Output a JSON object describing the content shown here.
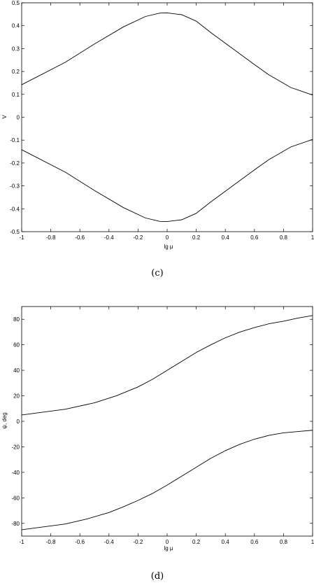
{
  "chart_data": [
    {
      "type": "line",
      "caption": "(c)",
      "xlabel": "lg μ",
      "ylabel": "V",
      "xlim": [
        -1,
        1
      ],
      "ylim": [
        -0.5,
        0.5
      ],
      "xticks": [
        -1,
        -0.8,
        -0.6,
        -0.4,
        -0.2,
        0,
        0.2,
        0.4,
        0.6,
        0.8,
        1
      ],
      "xtick_labels": [
        "-1",
        "-0.8",
        "-0.6",
        "-0.4",
        "-0.2",
        "0",
        "0.2",
        "0.4",
        "0.6",
        "0.8",
        "1"
      ],
      "yticks": [
        -0.5,
        -0.4,
        -0.3,
        -0.2,
        -0.1,
        0,
        0.1,
        0.2,
        0.3,
        0.4,
        0.5
      ],
      "ytick_labels": [
        "-0.5",
        "-0.4",
        "-0.3",
        "-0.2",
        "-0.1",
        "0",
        "0.1",
        "0.2",
        "0.3",
        "0.4",
        "0.5"
      ],
      "grid": false,
      "series": [
        {
          "x": [
            -1,
            -0.7,
            -0.5,
            -0.3,
            -0.15,
            -0.05,
            0.0,
            0.1,
            0.2,
            0.3,
            0.45,
            0.6,
            0.7,
            0.85,
            1.0
          ],
          "y": [
            0.142,
            0.24,
            0.32,
            0.395,
            0.44,
            0.455,
            0.456,
            0.448,
            0.42,
            0.37,
            0.3,
            0.23,
            0.185,
            0.13,
            0.097
          ]
        },
        {
          "x": [
            -1,
            -0.7,
            -0.5,
            -0.3,
            -0.15,
            -0.05,
            0.0,
            0.1,
            0.2,
            0.3,
            0.45,
            0.6,
            0.7,
            0.85,
            1.0
          ],
          "y": [
            -0.142,
            -0.24,
            -0.32,
            -0.395,
            -0.44,
            -0.455,
            -0.456,
            -0.448,
            -0.42,
            -0.37,
            -0.3,
            -0.23,
            -0.185,
            -0.13,
            -0.097
          ]
        }
      ]
    },
    {
      "type": "line",
      "caption": "(d)",
      "xlabel": "lg μ",
      "ylabel": "ψ, deg",
      "xlim": [
        -1,
        1
      ],
      "ylim": [
        -90,
        90
      ],
      "xticks": [
        -1,
        -0.8,
        -0.6,
        -0.4,
        -0.2,
        0,
        0.2,
        0.4,
        0.6,
        0.8,
        1
      ],
      "xtick_labels": [
        "-1",
        "-0.8",
        "-0.6",
        "-0.4",
        "-0.2",
        "0",
        "0.2",
        "0.4",
        "0.6",
        "0.8",
        "1"
      ],
      "yticks": [
        -80,
        -60,
        -40,
        -20,
        0,
        20,
        40,
        60,
        80
      ],
      "ytick_labels": [
        "-80",
        "-60",
        "-40",
        "-20",
        "0",
        "20",
        "40",
        "60",
        "80"
      ],
      "grid": false,
      "series": [
        {
          "x": [
            -1,
            -0.7,
            -0.5,
            -0.35,
            -0.2,
            -0.1,
            0.0,
            0.1,
            0.2,
            0.3,
            0.4,
            0.5,
            0.6,
            0.7,
            0.8,
            0.9,
            1.0
          ],
          "y": [
            5,
            9.5,
            14.5,
            20,
            27,
            33,
            40,
            47,
            54,
            60,
            65.5,
            70,
            73.5,
            76.5,
            78.5,
            81,
            83
          ]
        },
        {
          "x": [
            -1,
            -0.7,
            -0.55,
            -0.4,
            -0.3,
            -0.2,
            -0.1,
            0.0,
            0.1,
            0.2,
            0.3,
            0.4,
            0.5,
            0.6,
            0.7,
            0.8,
            0.9,
            1.0
          ],
          "y": [
            -85,
            -80.5,
            -76.5,
            -71.5,
            -67,
            -62,
            -56.5,
            -50,
            -43,
            -36,
            -29,
            -23,
            -18,
            -14,
            -11,
            -9,
            -8,
            -7
          ]
        }
      ]
    }
  ]
}
